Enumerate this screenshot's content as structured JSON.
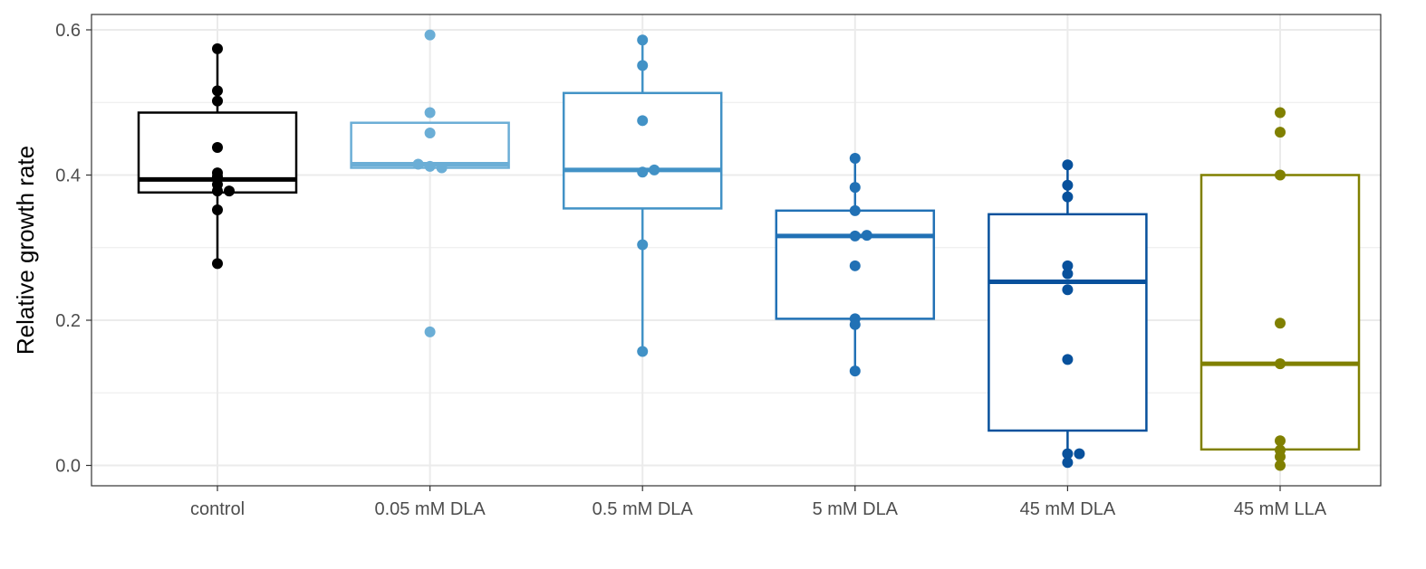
{
  "chart_data": {
    "type": "box",
    "title": "",
    "xlabel": "",
    "ylabel": "Relative growth rate",
    "ylim": [
      -0.03,
      0.62
    ],
    "yticks": [
      0.0,
      0.2,
      0.4,
      0.6
    ],
    "ytick_labels": [
      "0.0",
      "0.2",
      "0.4",
      "0.6"
    ],
    "grid": true,
    "legend": "none",
    "categories": [
      "control",
      "0.05 mM DLA",
      "0.5 mM DLA",
      "5 mM DLA",
      "45 mM DLA",
      "45 mM LLA"
    ],
    "colors": [
      "#000000",
      "#6baed6",
      "#4292c6",
      "#2171b5",
      "#08519c",
      "#808000"
    ],
    "boxes": [
      {
        "min": 0.278,
        "q1": 0.376,
        "median": 0.394,
        "q3": 0.486,
        "max": 0.574
      },
      {
        "min": 0.41,
        "q1": 0.41,
        "median": 0.415,
        "q3": 0.472,
        "max": 0.472
      },
      {
        "min": 0.157,
        "q1": 0.354,
        "median": 0.407,
        "q3": 0.513,
        "max": 0.586
      },
      {
        "min": 0.13,
        "q1": 0.202,
        "median": 0.316,
        "q3": 0.351,
        "max": 0.423
      },
      {
        "min": 0.004,
        "q1": 0.048,
        "median": 0.253,
        "q3": 0.346,
        "max": 0.414
      },
      {
        "min": 0.0,
        "q1": 0.022,
        "median": 0.14,
        "q3": 0.4,
        "max": 0.4
      }
    ],
    "points": [
      [
        0.574,
        0.516,
        0.502,
        0.438,
        0.403,
        0.398,
        0.387,
        0.378,
        0.378,
        0.352,
        0.278
      ],
      [
        0.593,
        0.486,
        0.458,
        0.415,
        0.412,
        0.41,
        0.184
      ],
      [
        0.586,
        0.551,
        0.475,
        0.407,
        0.404,
        0.304,
        0.157
      ],
      [
        0.423,
        0.383,
        0.351,
        0.317,
        0.316,
        0.275,
        0.202,
        0.194,
        0.13
      ],
      [
        0.414,
        0.386,
        0.37,
        0.275,
        0.264,
        0.242,
        0.146,
        0.016,
        0.016,
        0.004
      ],
      [
        0.486,
        0.459,
        0.4,
        0.196,
        0.14,
        0.034,
        0.021,
        0.012,
        0.0
      ]
    ],
    "point_offsets": [
      [
        0,
        0,
        0,
        0,
        0,
        0,
        0,
        0,
        1,
        0,
        0
      ],
      [
        0,
        0,
        0,
        -1,
        0,
        1,
        0
      ],
      [
        0,
        0,
        0,
        1,
        0,
        0,
        0
      ],
      [
        0,
        0,
        0,
        1,
        0,
        0,
        0,
        0,
        0
      ],
      [
        0,
        0,
        0,
        0,
        0,
        0,
        0,
        0,
        1,
        0
      ],
      [
        0,
        0,
        0,
        0,
        0,
        0,
        0,
        0,
        0
      ]
    ]
  }
}
